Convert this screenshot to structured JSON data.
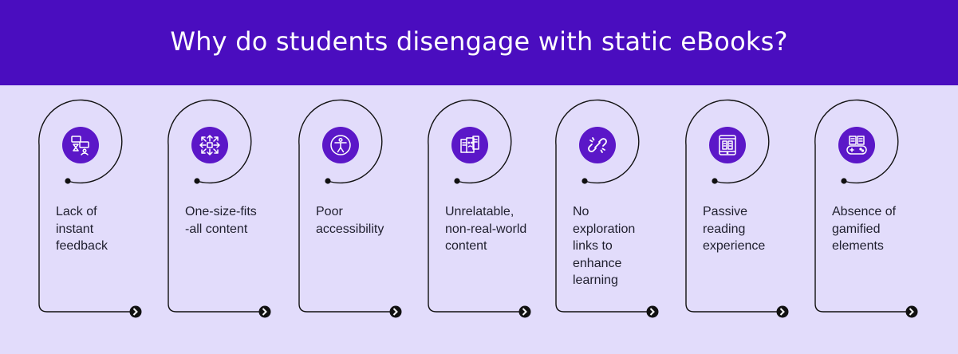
{
  "title": "Why do students disengage with static eBooks?",
  "colors": {
    "header": "#4a0dbf",
    "background": "#e2dcfb",
    "icon_bg": "#5b17c8",
    "line": "#111111"
  },
  "cards": [
    {
      "label": "Lack of\ninstant\nfeedback",
      "icon": "feedback-chat-icon"
    },
    {
      "label": "One-size-fits\n-all content",
      "icon": "arrows-expand-icon"
    },
    {
      "label": "Poor\naccessibility",
      "icon": "accessibility-person-icon"
    },
    {
      "label": "Unrelatable,\nnon-real-world\ncontent",
      "icon": "sad-documents-icon"
    },
    {
      "label": "No\nexploration\nlinks to\nenhance\nlearning",
      "icon": "broken-link-icon"
    },
    {
      "label": "Passive\nreading\nexperience",
      "icon": "tablet-reading-icon"
    },
    {
      "label": "Absence of\ngamified\nelements",
      "icon": "book-gamepad-icon"
    }
  ]
}
